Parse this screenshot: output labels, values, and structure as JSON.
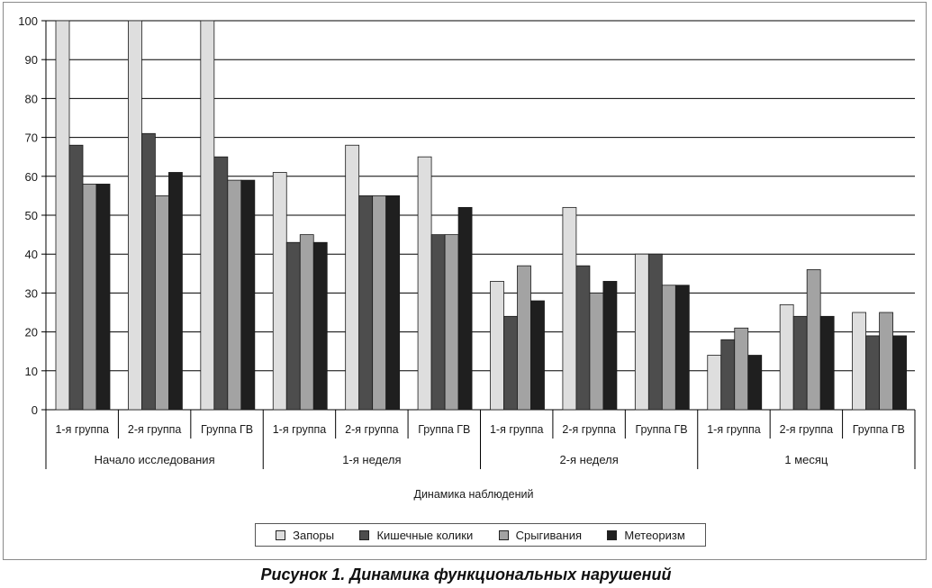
{
  "caption": "Рисунок 1. Динамика функциональных нарушений",
  "chart_data": {
    "type": "bar",
    "xlabel": "Динамика наблюдений",
    "ylim": [
      0,
      100
    ],
    "yticks": [
      0,
      10,
      20,
      30,
      40,
      50,
      60,
      70,
      80,
      90,
      100
    ],
    "grid": true,
    "legend_position": "bottom",
    "groups": [
      {
        "label": "Начало исследования",
        "categories": [
          "1-я группа",
          "2-я группа",
          "Группа ГВ"
        ]
      },
      {
        "label": "1-я неделя",
        "categories": [
          "1-я группа",
          "2-я группа",
          "Группа ГВ"
        ]
      },
      {
        "label": "2-я неделя",
        "categories": [
          "1-я группа",
          "2-я группа",
          "Группа ГВ"
        ]
      },
      {
        "label": "1 месяц",
        "categories": [
          "1-я группа",
          "2-я группа",
          "Группа ГВ"
        ]
      }
    ],
    "series": [
      {
        "name": "Запоры",
        "color": "#dedede",
        "values": [
          100,
          100,
          100,
          61,
          68,
          65,
          33,
          52,
          40,
          14,
          27,
          25
        ]
      },
      {
        "name": "Кишечные колики",
        "color": "#4d4d4d",
        "values": [
          68,
          71,
          65,
          43,
          55,
          45,
          24,
          37,
          40,
          18,
          24,
          19
        ]
      },
      {
        "name": "Срыгивания",
        "color": "#a3a3a3",
        "values": [
          58,
          55,
          59,
          45,
          55,
          45,
          37,
          30,
          32,
          21,
          36,
          25
        ]
      },
      {
        "name": "Метеоризм",
        "color": "#1f1f1f",
        "values": [
          58,
          61,
          59,
          43,
          55,
          52,
          28,
          33,
          32,
          14,
          24,
          19
        ]
      }
    ]
  }
}
